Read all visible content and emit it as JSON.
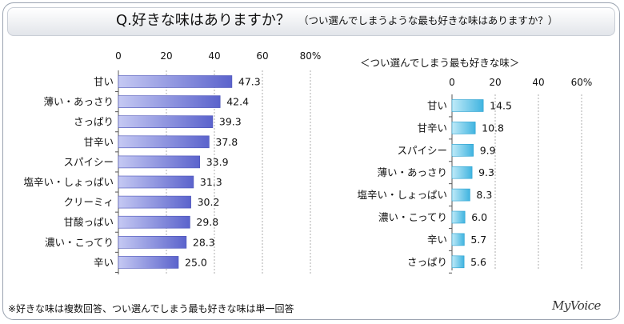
{
  "title": {
    "main": "Q.好きな味はありますか？",
    "sub": "（つい選んでしまうような最も好きな味はありますか？）"
  },
  "footnote": "※好きな味は複数回答、つい選んでしまう最も好きな味は単一回答",
  "brand": "MyVoice",
  "colors": {
    "left_bar": "#6b73d6",
    "right_bar": "#5bc4e8",
    "grid": "#9a9a9a"
  },
  "chart_data": [
    {
      "type": "bar",
      "orientation": "horizontal",
      "title": "",
      "xlim": [
        0,
        80
      ],
      "ticks": [
        "0",
        "20",
        "40",
        "60",
        "80%"
      ],
      "categories": [
        "甘い",
        "薄い・あっさり",
        "さっぱり",
        "甘辛い",
        "スパイシー",
        "塩辛い・しょっぱい",
        "クリーミィ",
        "甘酸っぱい",
        "濃い・こってり",
        "辛い"
      ],
      "values": [
        47.3,
        42.4,
        39.3,
        37.8,
        33.9,
        31.3,
        30.2,
        29.8,
        28.3,
        25.0
      ],
      "labels": [
        "47.3",
        "42.4",
        "39.3",
        "37.8",
        "33.9",
        "31.3",
        "30.2",
        "29.8",
        "28.3",
        "25.0"
      ]
    },
    {
      "type": "bar",
      "orientation": "horizontal",
      "title": "＜つい選んでしまう最も好きな味＞",
      "xlim": [
        0,
        60
      ],
      "ticks": [
        "0",
        "20",
        "40",
        "60%"
      ],
      "categories": [
        "甘い",
        "甘辛い",
        "スパイシー",
        "薄い・あっさり",
        "塩辛い・しょっぱい",
        "濃い・こってり",
        "辛い",
        "さっぱり"
      ],
      "values": [
        14.5,
        10.8,
        9.9,
        9.3,
        8.3,
        6.0,
        5.7,
        5.6
      ],
      "labels": [
        "14.5",
        "10.8",
        "9.9",
        "9.3",
        "8.3",
        "6.0",
        "5.7",
        "5.6"
      ]
    }
  ]
}
